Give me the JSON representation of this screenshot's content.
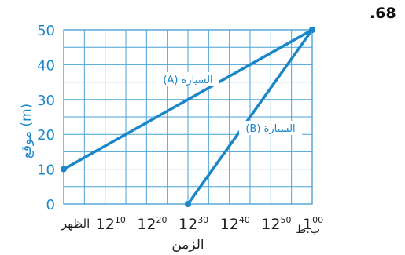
{
  "problem_number": ".68",
  "chart_data": {
    "type": "line",
    "xlabel": "الزمن",
    "ylabel": "موقع (m)",
    "x_ticks": [
      {
        "base": "الظهر",
        "sup": ""
      },
      {
        "base": "12",
        "sup": "10"
      },
      {
        "base": "12",
        "sup": "20"
      },
      {
        "base": "12",
        "sup": "30"
      },
      {
        "base": "12",
        "sup": "40"
      },
      {
        "base": "12",
        "sup": "50"
      },
      {
        "base": "1",
        "sup": "00",
        "suffix": "ب.ظ"
      }
    ],
    "x_unit": "minutes after noon",
    "xlim": [
      0,
      60
    ],
    "ylim": [
      0,
      50
    ],
    "y_ticks": [
      "0",
      "10",
      "20",
      "30",
      "40",
      "50"
    ],
    "grid": true,
    "series": [
      {
        "name": "السيارة (A)",
        "x": [
          0,
          60
        ],
        "y": [
          10,
          50
        ]
      },
      {
        "name": "السيارة (B)",
        "x": [
          30,
          60
        ],
        "y": [
          0,
          50
        ]
      }
    ]
  },
  "colors": {
    "line": "#1a87c8",
    "grid": "#4aa3d6",
    "axis_text": "#1a87c8"
  }
}
